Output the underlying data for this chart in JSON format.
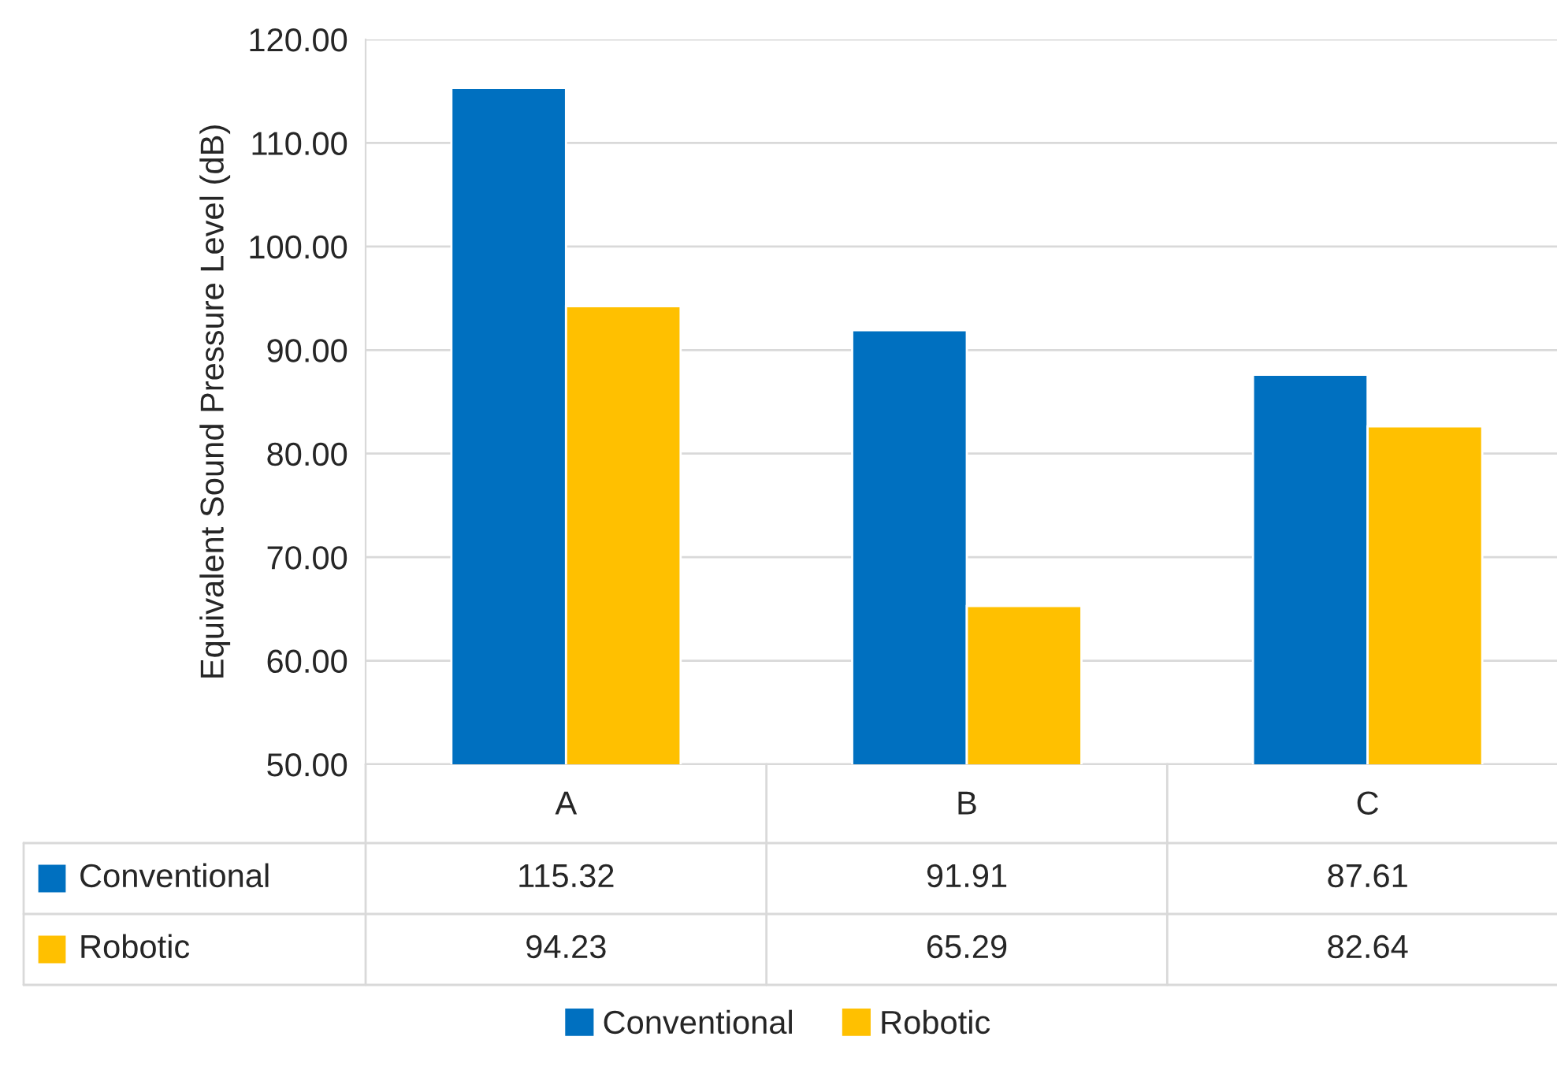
{
  "chart_data": {
    "type": "bar",
    "ylabel": "Equivalent Sound Pressure Level (dB)",
    "categories": [
      "A",
      "B",
      "C"
    ],
    "series": [
      {
        "name": "Conventional",
        "color": "#0070c0",
        "values": [
          115.32,
          91.91,
          87.61
        ]
      },
      {
        "name": "Robotic",
        "color": "#ffc000",
        "values": [
          94.23,
          65.29,
          82.64
        ]
      }
    ],
    "ylim": [
      50,
      120
    ],
    "yticks": [
      {
        "value": 50,
        "label": "50.00"
      },
      {
        "value": 60,
        "label": "60.00"
      },
      {
        "value": 70,
        "label": "70.00"
      },
      {
        "value": 80,
        "label": "80.00"
      },
      {
        "value": 90,
        "label": "90.00"
      },
      {
        "value": 100,
        "label": "100.00"
      },
      {
        "value": 110,
        "label": "110.00"
      },
      {
        "value": 120,
        "label": "120.00"
      }
    ],
    "grid": "y",
    "legend": "bottom",
    "data_labels": true
  }
}
